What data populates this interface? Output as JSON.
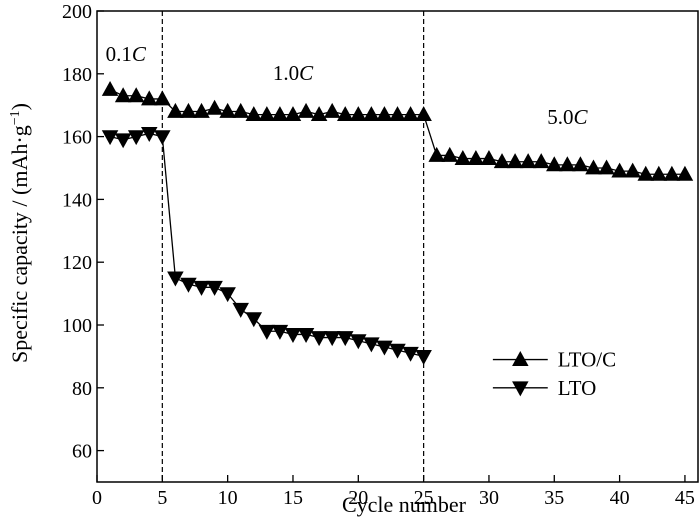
{
  "chart_data": {
    "type": "line",
    "xlabel": "Cycle number",
    "ylabel_main": "Specific capacity / (mAh·g",
    "ylabel_sup": "−1",
    "ylabel_close": ")",
    "xlim": [
      0,
      46
    ],
    "ylim": [
      50,
      200
    ],
    "xticks": [
      0,
      5,
      10,
      15,
      20,
      25,
      30,
      35,
      40,
      45
    ],
    "yticks": [
      60,
      80,
      100,
      120,
      140,
      160,
      180,
      200
    ],
    "grid": false,
    "vlines": [
      5,
      25
    ],
    "annotations": [
      {
        "num": "0.1",
        "unit": "C",
        "x": 2.2,
        "y": 184
      },
      {
        "num": "1.0",
        "unit": "C",
        "x": 15.0,
        "y": 178
      },
      {
        "num": "5.0",
        "unit": "C",
        "x": 36.0,
        "y": 164
      }
    ],
    "legend_position": "center-right",
    "series": [
      {
        "name": "LTO/C",
        "marker": "triangle-up",
        "x": [
          1,
          2,
          3,
          4,
          5,
          6,
          7,
          8,
          9,
          10,
          11,
          12,
          13,
          14,
          15,
          16,
          17,
          18,
          19,
          20,
          21,
          22,
          23,
          24,
          25,
          26,
          27,
          28,
          29,
          30,
          31,
          32,
          33,
          34,
          35,
          36,
          37,
          38,
          39,
          40,
          41,
          42,
          43,
          44,
          45
        ],
        "y": [
          175,
          173,
          173,
          172,
          172,
          168,
          168,
          168,
          169,
          168,
          168,
          167,
          167,
          167,
          167,
          168,
          167,
          168,
          167,
          167,
          167,
          167,
          167,
          167,
          167,
          154,
          154,
          153,
          153,
          153,
          152,
          152,
          152,
          152,
          151,
          151,
          151,
          150,
          150,
          149,
          149,
          148,
          148,
          148,
          148
        ]
      },
      {
        "name": "LTO",
        "marker": "triangle-down",
        "x": [
          1,
          2,
          3,
          4,
          5,
          6,
          7,
          8,
          9,
          10,
          11,
          12,
          13,
          14,
          15,
          16,
          17,
          18,
          19,
          20,
          21,
          22,
          23,
          24,
          25
        ],
        "y": [
          160,
          159,
          160,
          161,
          160,
          115,
          113,
          112,
          112,
          110,
          105,
          102,
          98,
          98,
          97,
          97,
          96,
          96,
          96,
          95,
          94,
          93,
          92,
          91,
          90
        ]
      }
    ]
  }
}
